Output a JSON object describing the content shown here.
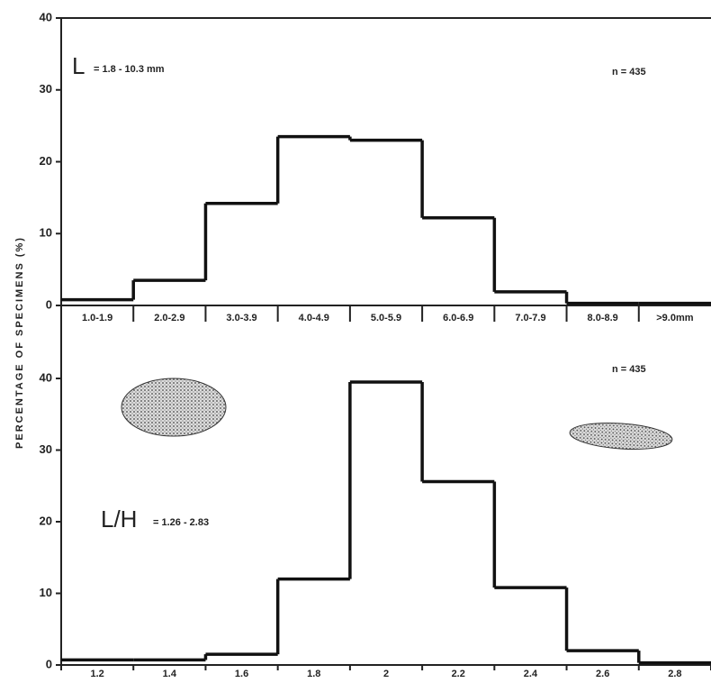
{
  "chart_data": [
    {
      "type": "bar",
      "categories": [
        "1.0-1.9",
        "2.0-2.9",
        "3.0-3.9",
        "4.0-4.9",
        "5.0-5.9",
        "6.0-6.9",
        "7.0-7.9",
        "8.0-8.9",
        ">9.0mm"
      ],
      "values": [
        0.8,
        3.5,
        14.2,
        23.5,
        23,
        12.2,
        1.9,
        0.3,
        0.3
      ],
      "ylim": [
        0,
        40
      ],
      "yticks": [
        0,
        10,
        20,
        30,
        40
      ],
      "color": "#111111",
      "annotations": [
        "L",
        "= 1.8 - 10.3 mm",
        "n = 435"
      ]
    },
    {
      "type": "histogram",
      "ylabel": "PERCENTAGE OF SPECIMENS (%)",
      "bins": [
        1.1,
        1.3,
        1.5,
        1.7,
        1.9,
        2.1,
        2.3,
        2.5,
        2.7,
        2.9
      ],
      "values": [
        0.7,
        0.7,
        1.5,
        12,
        39.5,
        25.6,
        10.8,
        2,
        0.3
      ],
      "xlim": [
        1.1,
        2.9
      ],
      "xticks": [
        1.2,
        1.4,
        1.6,
        1.8,
        2.0,
        2.2,
        2.4,
        2.6,
        2.8
      ],
      "ylim": [
        0,
        40
      ],
      "yticks": [
        0,
        10,
        20,
        30,
        40
      ],
      "color": "#111111",
      "annotations": [
        "L/H",
        "= 1.26 - 2.83",
        "n = 435"
      ]
    }
  ]
}
